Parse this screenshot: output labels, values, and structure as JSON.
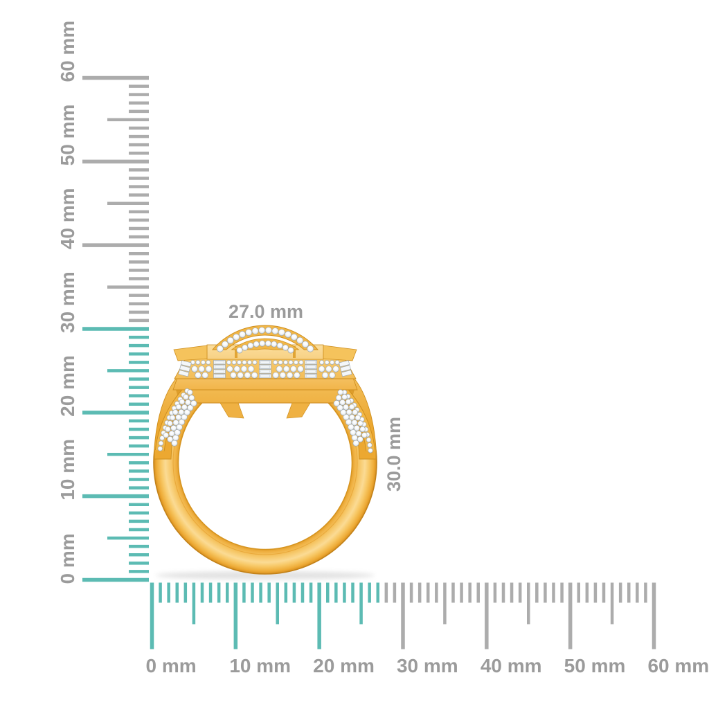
{
  "page": {
    "type": "jewelry-product-measurement-image",
    "background": "#FFFFFF",
    "subject": "Yellow gold diamond cluster ring, front view, with millimeter measurement rulers"
  },
  "ring": {
    "metal_color": "#F2B747",
    "stone_color": "#F4F7F9",
    "width_mm": 27.0,
    "height_mm": 30.0
  },
  "dimensions": {
    "width_label": "27.0 mm",
    "height_label": "30.0 mm"
  },
  "rulers": {
    "unit": "mm",
    "tick_step_mm": 1,
    "mid_tick_step_mm": 5,
    "label_step_mm": 10,
    "vertical": {
      "min_mm": 0,
      "max_mm": 60,
      "highlight_to_mm": 30,
      "labels": [
        "0 mm",
        "10 mm",
        "20 mm",
        "30 mm",
        "40 mm",
        "50 mm",
        "60 mm"
      ]
    },
    "horizontal": {
      "min_mm": 0,
      "max_mm": 60,
      "highlight_to_mm": 27,
      "labels": [
        "0 mm",
        "10 mm",
        "20 mm",
        "30 mm",
        "40 mm",
        "50 mm",
        "60 mm"
      ]
    },
    "colors": {
      "highlight_teal": "#5CBBB3",
      "tick_gray": "#ACACAC",
      "label_gray": "#9B9B9B"
    }
  }
}
